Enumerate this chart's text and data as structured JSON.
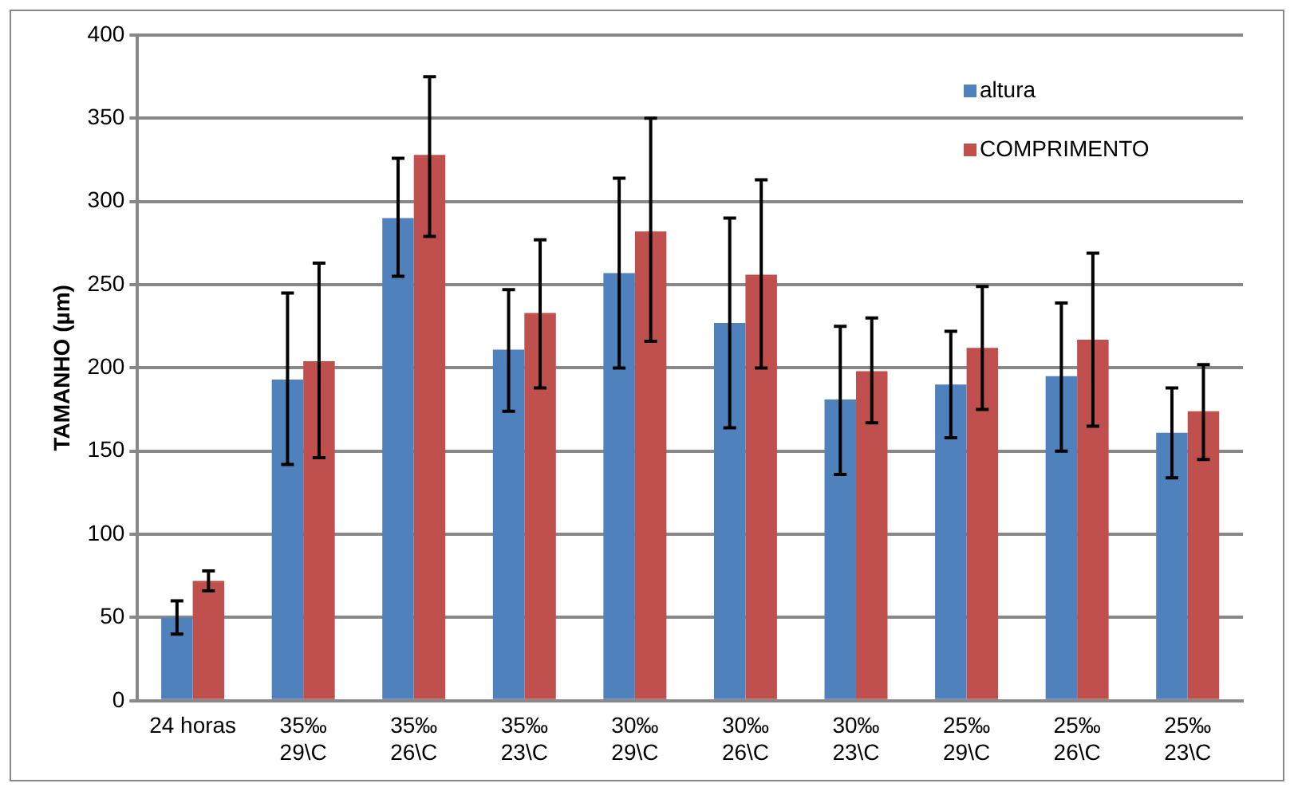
{
  "chart_data": {
    "type": "bar",
    "ylabel": "TAMANHO (µm)",
    "categories": [
      "24 horas",
      "35‰\n29\\C",
      "35‰\n26\\C",
      "35‰\n23\\C",
      "30‰\n29\\C",
      "30‰\n26\\C",
      "30‰\n23\\C",
      "25‰\n29\\C",
      "25‰\n26\\C",
      "25‰\n23\\C"
    ],
    "series": [
      {
        "name": "altura",
        "color": "#4f81bd",
        "values": [
          50,
          193,
          290,
          211,
          257,
          227,
          181,
          190,
          195,
          161
        ],
        "errors": [
          [
            40,
            60
          ],
          [
            142,
            245
          ],
          [
            255,
            326
          ],
          [
            174,
            247
          ],
          [
            200,
            314
          ],
          [
            164,
            290
          ],
          [
            136,
            225
          ],
          [
            158,
            222
          ],
          [
            150,
            239
          ],
          [
            134,
            188
          ]
        ]
      },
      {
        "name": "COMPRIMENTO",
        "color": "#c0504d",
        "values": [
          72,
          204,
          328,
          233,
          282,
          256,
          198,
          212,
          217,
          174
        ],
        "errors": [
          [
            66,
            78
          ],
          [
            146,
            263
          ],
          [
            279,
            375
          ],
          [
            188,
            277
          ],
          [
            216,
            350
          ],
          [
            200,
            313
          ],
          [
            167,
            230
          ],
          [
            175,
            249
          ],
          [
            165,
            269
          ],
          [
            145,
            202
          ]
        ]
      }
    ],
    "ylim": [
      0,
      400
    ],
    "yticks": [
      0,
      50,
      100,
      150,
      200,
      250,
      300,
      350,
      400
    ],
    "grid": "y",
    "legend": "top right"
  }
}
